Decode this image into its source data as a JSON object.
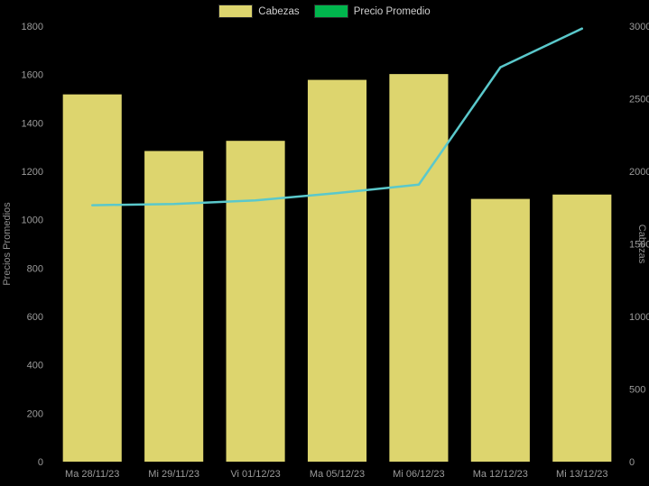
{
  "chart_data": {
    "type": "bar+line",
    "title": "",
    "categories": [
      "Ma 28/11/23",
      "Mi 29/11/23",
      "Vi 01/12/23",
      "Ma 05/12/23",
      "Mi 06/12/23",
      "Ma 12/12/23",
      "Mi 13/12/23"
    ],
    "series": [
      {
        "name": "Cabezas",
        "type": "bar",
        "axis": "right",
        "color": "#ddd56e",
        "values": [
          2530,
          2140,
          2210,
          2630,
          2670,
          1810,
          1840
        ]
      },
      {
        "name": "Precio Promedio",
        "type": "line",
        "axis": "left",
        "color": "#5ac8cb",
        "legend_color": "#00b64d",
        "values": [
          1060,
          1065,
          1080,
          1110,
          1145,
          1630,
          1790
        ]
      }
    ],
    "left_axis": {
      "label": "Precios Promedios",
      "min": 0,
      "max": 1800,
      "step": 200
    },
    "right_axis": {
      "label": "Cabezas",
      "min": 0,
      "max": 3000,
      "step": 500
    },
    "grid": false,
    "legend_position": "top",
    "background": "#000000"
  }
}
